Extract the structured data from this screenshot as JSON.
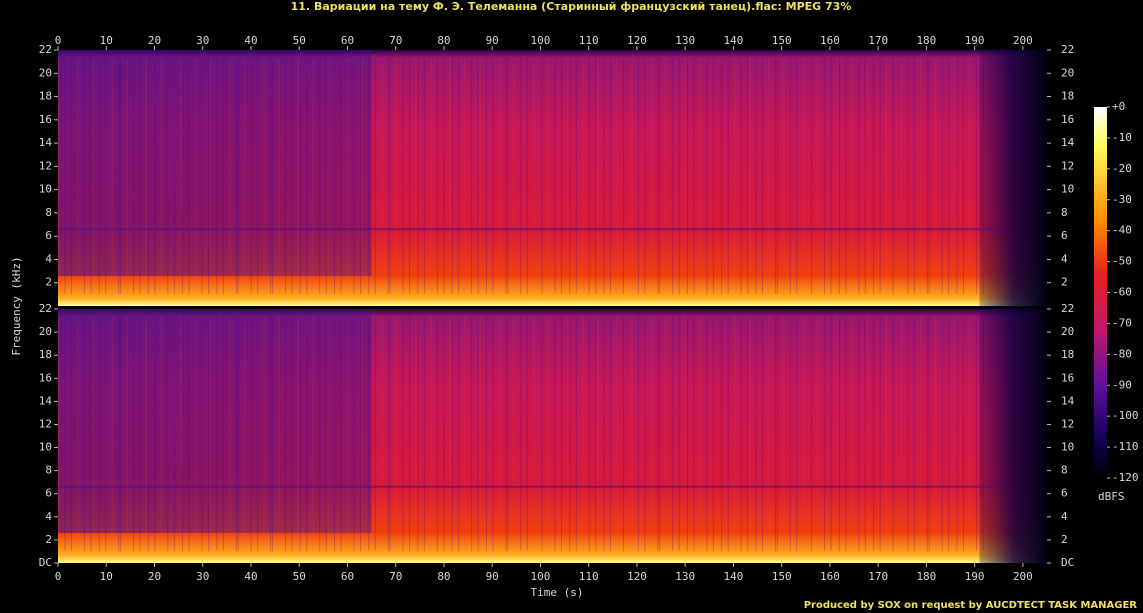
{
  "chart_data": {
    "type": "spectrogram",
    "title": "11. Вариации на тему Ф. Э. Телеманна (Старинный французский танец).flac: MPEG 73%",
    "x_label": "Time (s)",
    "y_label": "Frequency (kHz)",
    "xlim": [
      0,
      205
    ],
    "xticks": [
      0,
      10,
      20,
      30,
      40,
      50,
      60,
      70,
      80,
      90,
      100,
      110,
      120,
      130,
      140,
      150,
      160,
      170,
      180,
      190,
      200
    ],
    "ylim": [
      0,
      22
    ],
    "panels": [
      {
        "yticks": [
          2,
          4,
          6,
          8,
          10,
          12,
          14,
          16,
          18,
          20,
          22
        ]
      },
      {
        "yticks": [
          {
            "value": 0,
            "label": "DC"
          },
          2,
          4,
          6,
          8,
          10,
          12,
          14,
          16,
          18,
          20,
          22
        ]
      }
    ],
    "colorbar": {
      "label": "dBFS",
      "lim": [
        -120,
        0
      ],
      "ticks": [
        {
          "value": 0,
          "label": "+0"
        },
        -10,
        -20,
        -30,
        -40,
        -50,
        -60,
        -70,
        -80,
        -90,
        -100,
        -110,
        -120
      ]
    },
    "footer": "Produced by SOX on request by AUCDTECT TASK MANAGER"
  }
}
